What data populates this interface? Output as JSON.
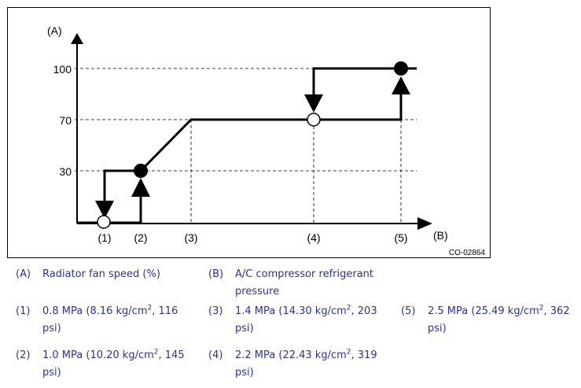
{
  "diagram": {
    "y_axis_label": "(A)",
    "x_axis_label": "(B)",
    "y_ticks": [
      "100",
      "70",
      "30"
    ],
    "x_points": [
      "(1)",
      "(2)",
      "(3)",
      "(4)",
      "(5)"
    ],
    "figure_code": "CO-02864"
  },
  "legend": {
    "A": {
      "key": "(A)",
      "text": "Radiator fan speed (%)"
    },
    "B": {
      "key": "(B)",
      "text": "A/C compressor refrigerant pressure"
    },
    "p1": {
      "key": "(1)",
      "text_pre": "0.8 MPa (8.16 kg/cm",
      "sup": "2",
      "text_post": ", 116 psi)"
    },
    "p2": {
      "key": "(2)",
      "text_pre": "1.0 MPa (10.20 kg/cm",
      "sup": "2",
      "text_post": ", 145 psi)"
    },
    "p3": {
      "key": "(3)",
      "text_pre": "1.4 MPa (14.30 kg/cm",
      "sup": "2",
      "text_post": ", 203 psi)"
    },
    "p4": {
      "key": "(4)",
      "text_pre": "2.2 MPa (22.43 kg/cm",
      "sup": "2",
      "text_post": ", 319 psi)"
    },
    "p5": {
      "key": "(5)",
      "text_pre": "2.5 MPa (25.49 kg/cm",
      "sup": "2",
      "text_post": ", 362 psi)"
    }
  }
}
